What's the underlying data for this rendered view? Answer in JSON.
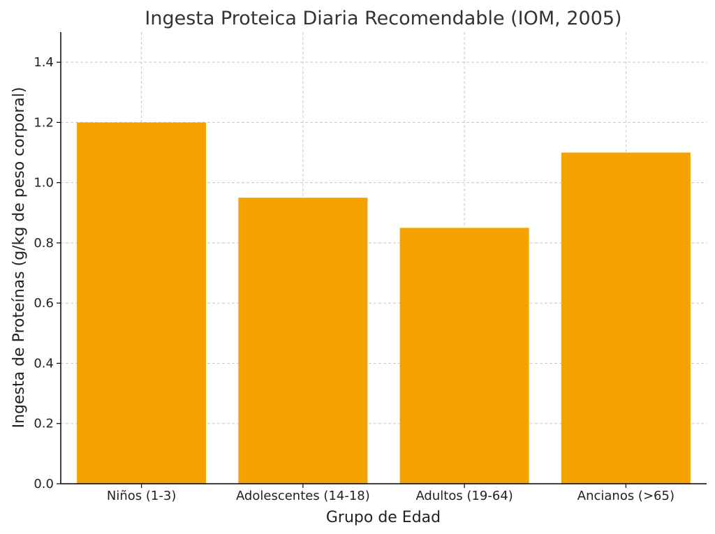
{
  "chart_data": {
    "type": "bar",
    "title": "Ingesta Proteica Diaria Recomendable (IOM, 2005)",
    "xlabel": "Grupo de Edad",
    "ylabel": "Ingesta de Proteínas (g/kg de peso corporal)",
    "categories": [
      "Niños (1-3)",
      "Adolescentes (14-18)",
      "Adultos (19-64)",
      "Ancianos (>65)"
    ],
    "values": [
      1.2,
      0.95,
      0.85,
      1.1
    ],
    "ylim": [
      0,
      1.5
    ],
    "yticks": [
      "0.0",
      "0.2",
      "0.4",
      "0.6",
      "0.8",
      "1.0",
      "1.2",
      "1.4"
    ],
    "grid": true,
    "bar_color": "#F4A300"
  }
}
